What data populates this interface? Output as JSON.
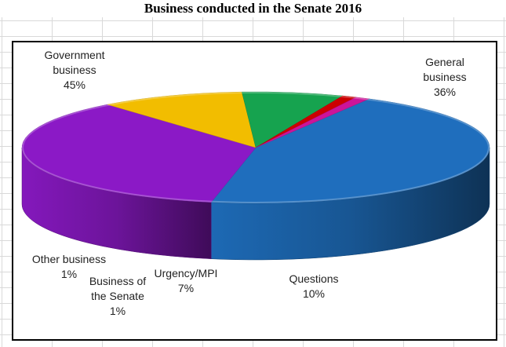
{
  "chart_data": {
    "type": "pie",
    "title": "Business conducted in the Senate 2016",
    "slices": [
      {
        "label_lines": [
          "Government",
          "business"
        ],
        "value_label": "45%",
        "value": 45,
        "color": "#1f6ebd"
      },
      {
        "label_lines": [
          "General",
          "business"
        ],
        "value_label": "36%",
        "value": 36,
        "color": "#8b19c6"
      },
      {
        "label_lines": [
          "Questions"
        ],
        "value_label": "10%",
        "value": 10,
        "color": "#f2bd00"
      },
      {
        "label_lines": [
          "Urgency/MPI"
        ],
        "value_label": "7%",
        "value": 7,
        "color": "#16a34f"
      },
      {
        "label_lines": [
          "Business of",
          "the Senate"
        ],
        "value_label": "1%",
        "value": 1,
        "color": "#cc0000"
      },
      {
        "label_lines": [
          "Other business"
        ],
        "value_label": "1%",
        "value": 1,
        "color": "#cc1499"
      }
    ]
  }
}
